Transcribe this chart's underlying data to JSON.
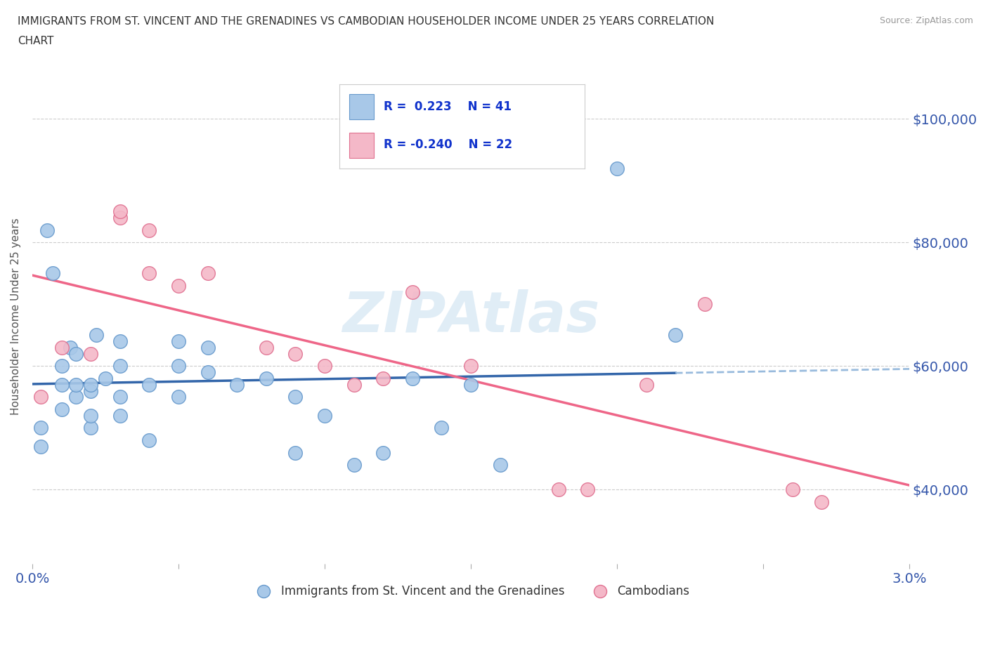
{
  "title_line1": "IMMIGRANTS FROM ST. VINCENT AND THE GRENADINES VS CAMBODIAN HOUSEHOLDER INCOME UNDER 25 YEARS CORRELATION",
  "title_line2": "CHART",
  "source": "Source: ZipAtlas.com",
  "ylabel": "Householder Income Under 25 years",
  "xlim": [
    0.0,
    0.03
  ],
  "ylim": [
    28000,
    108000
  ],
  "xtick_positions": [
    0.0,
    0.005,
    0.01,
    0.015,
    0.02,
    0.025,
    0.03
  ],
  "xtick_labels": [
    "0.0%",
    "",
    "",
    "",
    "",
    "",
    "3.0%"
  ],
  "ytick_values": [
    40000,
    60000,
    80000,
    100000
  ],
  "ytick_labels": [
    "$40,000",
    "$60,000",
    "$80,000",
    "$100,000"
  ],
  "blue_color": "#a8c8e8",
  "blue_edge_color": "#6699cc",
  "pink_color": "#f4b8c8",
  "pink_edge_color": "#e07090",
  "blue_line_color": "#3366aa",
  "pink_line_color": "#ee6688",
  "blue_dashed_color": "#99bbdd",
  "watermark": "ZIPAtlas",
  "legend_blue_R": "R =  0.223",
  "legend_blue_N": "N = 41",
  "legend_pink_R": "R = -0.240",
  "legend_pink_N": "N = 22",
  "blue_x": [
    0.0003,
    0.0003,
    0.0005,
    0.0007,
    0.001,
    0.001,
    0.001,
    0.0013,
    0.0015,
    0.0015,
    0.0015,
    0.002,
    0.002,
    0.002,
    0.002,
    0.0022,
    0.0025,
    0.003,
    0.003,
    0.003,
    0.003,
    0.004,
    0.004,
    0.005,
    0.005,
    0.005,
    0.006,
    0.006,
    0.007,
    0.008,
    0.009,
    0.009,
    0.01,
    0.011,
    0.012,
    0.013,
    0.014,
    0.015,
    0.016,
    0.02,
    0.022
  ],
  "blue_y": [
    47000,
    50000,
    82000,
    75000,
    53000,
    57000,
    60000,
    63000,
    55000,
    57000,
    62000,
    50000,
    52000,
    56000,
    57000,
    65000,
    58000,
    52000,
    55000,
    60000,
    64000,
    57000,
    48000,
    55000,
    60000,
    64000,
    59000,
    63000,
    57000,
    58000,
    46000,
    55000,
    52000,
    44000,
    46000,
    58000,
    50000,
    57000,
    44000,
    92000,
    65000
  ],
  "pink_x": [
    0.0003,
    0.001,
    0.002,
    0.003,
    0.003,
    0.004,
    0.004,
    0.005,
    0.006,
    0.008,
    0.009,
    0.01,
    0.011,
    0.012,
    0.013,
    0.015,
    0.018,
    0.019,
    0.021,
    0.023,
    0.026,
    0.027
  ],
  "pink_y": [
    55000,
    63000,
    62000,
    84000,
    85000,
    82000,
    75000,
    73000,
    75000,
    63000,
    62000,
    60000,
    57000,
    58000,
    72000,
    60000,
    40000,
    40000,
    57000,
    70000,
    40000,
    38000
  ],
  "background_color": "#ffffff"
}
